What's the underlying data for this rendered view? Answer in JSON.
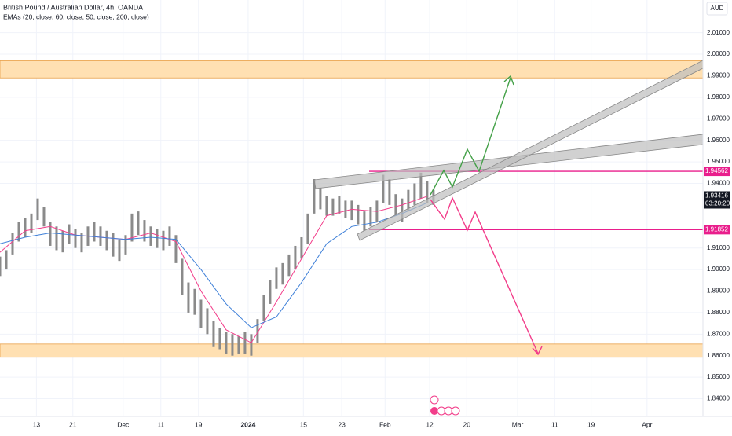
{
  "chart_data": {
    "type": "candlestick",
    "title": "British Pound / Australian Dollar, 4h, OANDA",
    "subtitle": "EMAs (20, close, 60, close, 50, close, 200, close)",
    "currency": "AUD",
    "ylim": [
      1.8318,
      2.0252
    ],
    "yticks": [
      {
        "value": 2.01,
        "label": "2.01000"
      },
      {
        "value": 2.0,
        "label": "2.00000"
      },
      {
        "value": 1.99,
        "label": "1.99000"
      },
      {
        "value": 1.98,
        "label": "1.98000"
      },
      {
        "value": 1.97,
        "label": "1.97000"
      },
      {
        "value": 1.96,
        "label": "1.96000"
      },
      {
        "value": 1.95,
        "label": "1.95000"
      },
      {
        "value": 1.94,
        "label": "1.94000"
      },
      {
        "value": 1.91,
        "label": "1.91000"
      },
      {
        "value": 1.9,
        "label": "1.90000"
      },
      {
        "value": 1.89,
        "label": "1.89000"
      },
      {
        "value": 1.88,
        "label": "1.88000"
      },
      {
        "value": 1.87,
        "label": "1.87000"
      },
      {
        "value": 1.86,
        "label": "1.86000"
      },
      {
        "value": 1.85,
        "label": "1.85000"
      },
      {
        "value": 1.84,
        "label": "1.84000"
      }
    ],
    "xlim": [
      0,
      111.9
    ],
    "xticks": [
      {
        "value": 5.8,
        "label": "13"
      },
      {
        "value": 11.6,
        "label": "21"
      },
      {
        "value": 19.6,
        "label": "Dec"
      },
      {
        "value": 25.6,
        "label": "11"
      },
      {
        "value": 31.6,
        "label": "19"
      },
      {
        "value": 39.5,
        "label": "2024"
      },
      {
        "value": 48.3,
        "label": "15"
      },
      {
        "value": 54.4,
        "label": "23"
      },
      {
        "value": 61.3,
        "label": "Feb"
      },
      {
        "value": 68.4,
        "label": "12"
      },
      {
        "value": 74.3,
        "label": "20"
      },
      {
        "value": 82.4,
        "label": "Mar"
      },
      {
        "value": 88.3,
        "label": "11"
      },
      {
        "value": 94.1,
        "label": "19"
      },
      {
        "value": 103,
        "label": "Apr"
      }
    ],
    "grid": true,
    "candle_color": "#8a8a8a",
    "candles": {
      "x": [
        0,
        1,
        2,
        3,
        4,
        5,
        6,
        7,
        8,
        9,
        10,
        11,
        12,
        13,
        14,
        15,
        16,
        17,
        18,
        19,
        20,
        21,
        22,
        23,
        24,
        25,
        26,
        27,
        28,
        29,
        30,
        31,
        32,
        33,
        34,
        35,
        36,
        37,
        38,
        39,
        40,
        41,
        42,
        43,
        44,
        45,
        46,
        47,
        48,
        49,
        50,
        51,
        52,
        53,
        54,
        55,
        56,
        57,
        58,
        59,
        60,
        61,
        62,
        63,
        64,
        65,
        66,
        67,
        68,
        69
      ],
      "high": [
        1.906,
        1.909,
        1.917,
        1.922,
        1.924,
        1.926,
        1.933,
        1.929,
        1.922,
        1.92,
        1.918,
        1.921,
        1.919,
        1.917,
        1.92,
        1.922,
        1.92,
        1.918,
        1.917,
        1.914,
        1.916,
        1.926,
        1.927,
        1.923,
        1.92,
        1.919,
        1.918,
        1.92,
        1.916,
        1.905,
        1.894,
        1.891,
        1.886,
        1.882,
        1.876,
        1.873,
        1.871,
        1.87,
        1.869,
        1.871,
        1.87,
        1.877,
        1.888,
        1.895,
        1.901,
        1.903,
        1.907,
        1.911,
        1.915,
        1.926,
        1.942,
        1.938,
        1.934,
        1.933,
        1.934,
        1.932,
        1.932,
        1.93,
        1.927,
        1.929,
        1.932,
        1.944,
        1.942,
        1.935,
        1.933,
        1.937,
        1.94,
        1.945,
        1.941,
        1.937
      ],
      "low": [
        1.897,
        1.9,
        1.907,
        1.913,
        1.915,
        1.917,
        1.923,
        1.92,
        1.911,
        1.909,
        1.908,
        1.912,
        1.91,
        1.908,
        1.911,
        1.913,
        1.911,
        1.909,
        1.906,
        1.904,
        1.907,
        1.913,
        1.916,
        1.913,
        1.911,
        1.91,
        1.909,
        1.911,
        1.903,
        1.888,
        1.88,
        1.879,
        1.873,
        1.87,
        1.864,
        1.863,
        1.861,
        1.86,
        1.861,
        1.861,
        1.86,
        1.866,
        1.876,
        1.884,
        1.891,
        1.893,
        1.897,
        1.9,
        1.905,
        1.912,
        1.926,
        1.928,
        1.925,
        1.925,
        1.926,
        1.924,
        1.923,
        1.921,
        1.918,
        1.92,
        1.922,
        1.931,
        1.93,
        1.925,
        1.922,
        1.927,
        1.93,
        1.933,
        1.931,
        1.93
      ]
    },
    "series": [
      {
        "color": "#f23d8a",
        "x": [
          0,
          4,
          8,
          12,
          16,
          20,
          24,
          28,
          32,
          36,
          40,
          44,
          48,
          52,
          56,
          60,
          64,
          68
        ],
        "values": [
          1.908,
          1.918,
          1.92,
          1.916,
          1.915,
          1.914,
          1.917,
          1.913,
          1.89,
          1.872,
          1.866,
          1.885,
          1.905,
          1.925,
          1.928,
          1.927,
          1.93,
          1.934
        ]
      },
      {
        "color": "#3d7fd8",
        "x": [
          0,
          4,
          8,
          12,
          16,
          20,
          24,
          28,
          32,
          36,
          40,
          44,
          48,
          52,
          56,
          60,
          64,
          68
        ],
        "values": [
          1.912,
          1.915,
          1.917,
          1.916,
          1.915,
          1.914,
          1.915,
          1.914,
          1.9,
          1.884,
          1.873,
          1.878,
          1.894,
          1.912,
          1.92,
          1.922,
          1.926,
          1.931
        ]
      }
    ],
    "zones": [
      {
        "from": 1.98899,
        "to": 1.99696
      },
      {
        "from": 1.85928,
        "to": 1.86543
      }
    ],
    "zone_color": "#ffe0b2",
    "levels": [
      {
        "value": 1.94562,
        "label": "1.94562",
        "color": "#e91e8c"
      },
      {
        "value": 1.91852,
        "label": "1.91852",
        "color": "#e91e8c"
      }
    ],
    "last_price": {
      "value": 1.93416,
      "label": "1.93416",
      "time": "03:20:20"
    }
  }
}
